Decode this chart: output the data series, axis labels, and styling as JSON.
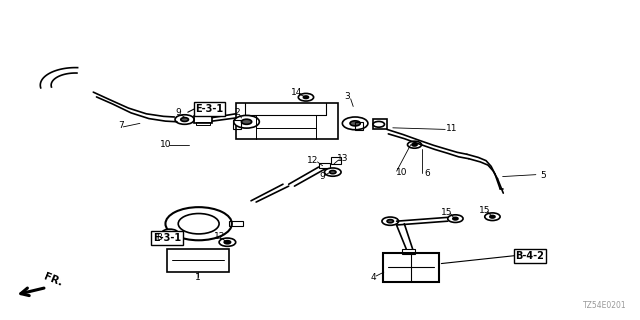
{
  "bg_color": "#ffffff",
  "fig_width": 6.4,
  "fig_height": 3.2,
  "dpi": 100,
  "diagram_code": "TZ54E0201",
  "fr_label": "FR."
}
